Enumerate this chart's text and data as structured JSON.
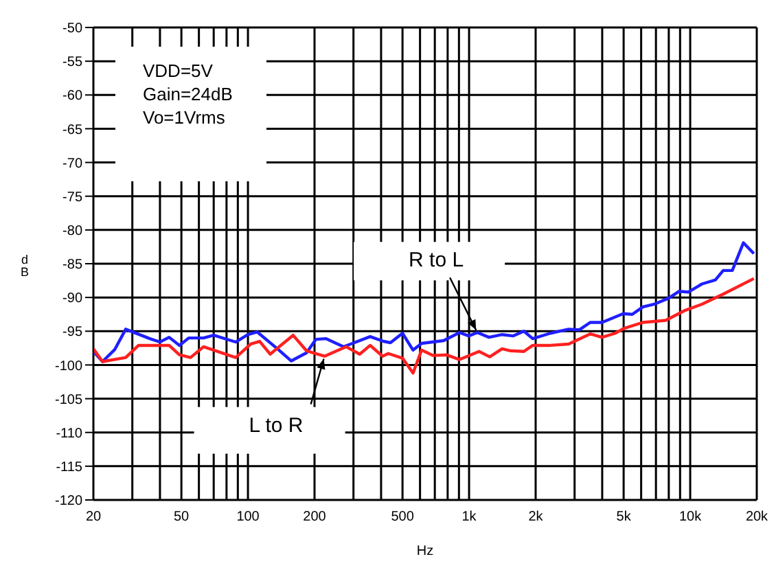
{
  "chart_data": {
    "type": "line",
    "xlabel": "Hz",
    "ylabel": "dB",
    "log": "x",
    "grid": true,
    "marker": "none",
    "line_style": "solid",
    "xlim": [
      20,
      20000
    ],
    "ylim": [
      -120,
      -50
    ],
    "xticks": [
      20,
      {
        "value": 30,
        "label": null
      },
      {
        "value": 40,
        "label": null
      },
      50,
      {
        "value": 60,
        "label": null
      },
      {
        "value": 70,
        "label": null
      },
      {
        "value": 80,
        "label": null
      },
      {
        "value": 90,
        "label": null
      },
      100,
      200,
      {
        "value": 300,
        "label": null
      },
      {
        "value": 400,
        "label": null
      },
      500,
      {
        "value": 600,
        "label": null
      },
      {
        "value": 700,
        "label": null
      },
      {
        "value": 800,
        "label": null
      },
      {
        "value": 900,
        "label": null
      },
      {
        "value": 1000,
        "label": "1k"
      },
      {
        "value": 2000,
        "label": "2k"
      },
      {
        "value": 3000,
        "label": null
      },
      {
        "value": 4000,
        "label": null
      },
      {
        "value": 5000,
        "label": "5k"
      },
      {
        "value": 6000,
        "label": null
      },
      {
        "value": 7000,
        "label": null
      },
      {
        "value": 8000,
        "label": null
      },
      {
        "value": 9000,
        "label": null
      },
      {
        "value": 10000,
        "label": "10k"
      },
      {
        "value": 20000,
        "label": "20k"
      }
    ],
    "yticks": [
      -120,
      -115,
      -110,
      -105,
      -100,
      -95,
      -90,
      -85,
      -80,
      -75,
      -70,
      -65,
      -60,
      -55,
      -50
    ],
    "annotations": [
      "VDD=5V",
      "Gain=24dB",
      "Vo=1Vrms"
    ],
    "series": [
      {
        "name": "R to L",
        "color": "#1f1fff",
        "x": [
          20,
          22,
          25,
          28,
          36,
          40,
          44,
          49,
          54,
          63,
          70,
          88,
          100,
          110,
          137,
          157,
          184,
          203,
          225,
          271,
          357,
          410,
          441,
          500,
          558,
          610,
          767,
          905,
          996,
          1090,
          1230,
          1410,
          1580,
          1770,
          1940,
          2330,
          2820,
          3150,
          3530,
          3990,
          4980,
          5470,
          6110,
          6880,
          7990,
          8890,
          9800,
          11300,
          13000,
          14100,
          15500,
          17400,
          19400
        ],
        "values": [
          -98,
          -99.5,
          -97.7,
          -94.7,
          -96.1,
          -96.6,
          -95.9,
          -97.1,
          -96,
          -96,
          -95.6,
          -96.6,
          -95.5,
          -95.1,
          -97.7,
          -99.4,
          -98.2,
          -96.2,
          -96.1,
          -97.3,
          -95.8,
          -96.5,
          -96.7,
          -95.3,
          -97.8,
          -96.8,
          -96.4,
          -95.2,
          -95.7,
          -95.2,
          -95.9,
          -95.5,
          -95.7,
          -95,
          -96.1,
          -95.3,
          -94.7,
          -94.8,
          -93.7,
          -93.7,
          -92.4,
          -92.5,
          -91.4,
          -91,
          -90.1,
          -89.1,
          -89.2,
          -88,
          -87.4,
          -86,
          -86,
          -81.9,
          -83.5
        ]
      },
      {
        "name": "L to R",
        "color": "#ff2020",
        "x": [
          20,
          22,
          28,
          32,
          44,
          49,
          55,
          63,
          88,
          103,
          113,
          126,
          160,
          184,
          222,
          278,
          320,
          357,
          406,
          431,
          500,
          558,
          610,
          688,
          790,
          905,
          1110,
          1240,
          1410,
          1540,
          1770,
          1940,
          2330,
          2820,
          3530,
          3990,
          4580,
          5000,
          6110,
          7750,
          9500,
          11300,
          14100,
          19400
        ],
        "values": [
          -97.6,
          -99.5,
          -98.9,
          -97.1,
          -97.1,
          -98.5,
          -98.9,
          -97.3,
          -98.9,
          -96.9,
          -96.5,
          -98.4,
          -95.6,
          -97.9,
          -98.7,
          -97.3,
          -98.4,
          -97.1,
          -98.7,
          -98.3,
          -99,
          -101.2,
          -97.8,
          -98.6,
          -98.5,
          -99.2,
          -98,
          -98.8,
          -97.6,
          -97.9,
          -98,
          -97.1,
          -97.1,
          -96.9,
          -95.4,
          -95.9,
          -95.3,
          -94.6,
          -93.7,
          -93.4,
          -91.9,
          -91,
          -89.5,
          -87.2
        ]
      }
    ]
  }
}
